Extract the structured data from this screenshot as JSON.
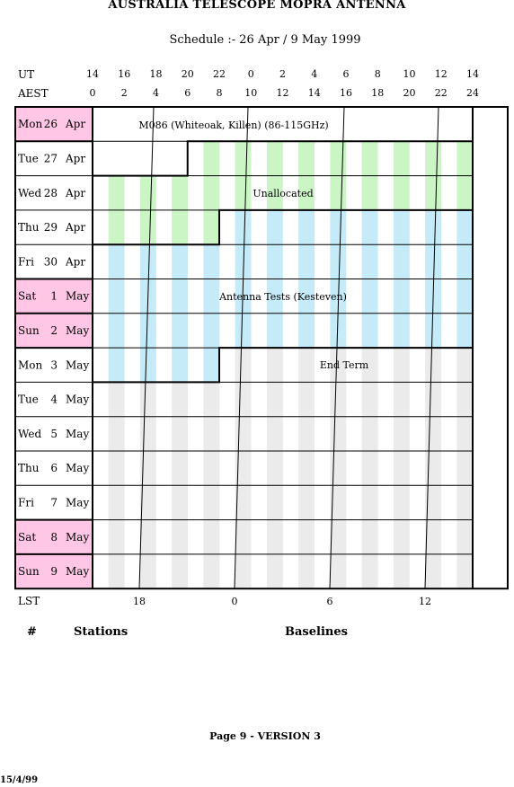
{
  "header": {
    "title": "AUSTRALIA TELESCOPE MOPRA ANTENNA",
    "subtitle": "Schedule :- 26 Apr / 9 May 1999"
  },
  "axes": {
    "ut_label": "UT",
    "aest_label": "AEST",
    "lst_label": "LST",
    "ut_ticks": [
      "14",
      "16",
      "18",
      "20",
      "22",
      "0",
      "2",
      "4",
      "6",
      "8",
      "10",
      "12",
      "14"
    ],
    "aest_ticks": [
      "0",
      "2",
      "4",
      "6",
      "8",
      "10",
      "12",
      "14",
      "16",
      "18",
      "20",
      "22",
      "24"
    ],
    "lst_ticks": [
      "18",
      "0",
      "6",
      "12"
    ]
  },
  "days": [
    {
      "name": "Mon",
      "date": "26",
      "month": "Apr",
      "highlight": true
    },
    {
      "name": "Tue",
      "date": "27",
      "month": "Apr",
      "highlight": false
    },
    {
      "name": "Wed",
      "date": "28",
      "month": "Apr",
      "highlight": false
    },
    {
      "name": "Thu",
      "date": "29",
      "month": "Apr",
      "highlight": false
    },
    {
      "name": "Fri",
      "date": "30",
      "month": "Apr",
      "highlight": false
    },
    {
      "name": "Sat",
      "date": "1",
      "month": "May",
      "highlight": true
    },
    {
      "name": "Sun",
      "date": "2",
      "month": "May",
      "highlight": true
    },
    {
      "name": "Mon",
      "date": "3",
      "month": "May",
      "highlight": false
    },
    {
      "name": "Tue",
      "date": "4",
      "month": "May",
      "highlight": false
    },
    {
      "name": "Wed",
      "date": "5",
      "month": "May",
      "highlight": false
    },
    {
      "name": "Thu",
      "date": "6",
      "month": "May",
      "highlight": false
    },
    {
      "name": "Fri",
      "date": "7",
      "month": "May",
      "highlight": false
    },
    {
      "name": "Sat",
      "date": "8",
      "month": "May",
      "highlight": true
    },
    {
      "name": "Sun",
      "date": "9",
      "month": "May",
      "highlight": true
    }
  ],
  "blocks": [
    {
      "label": "M086 (Whiteoak, Killen) (86-115GHz)",
      "start": {
        "day": 0,
        "hour": 0
      },
      "end": {
        "day": 1,
        "hour": 6
      },
      "stripe_color": "#ffffff"
    },
    {
      "label": "Unallocated",
      "start": {
        "day": 1,
        "hour": 6
      },
      "end": {
        "day": 3,
        "hour": 8
      },
      "stripe_color": "#ccf5c6"
    },
    {
      "label": "Antenna Tests (Kesteven)",
      "start": {
        "day": 3,
        "hour": 8
      },
      "end": {
        "day": 7,
        "hour": 8
      },
      "stripe_color": "#c6ebf8"
    },
    {
      "label": "End Term",
      "start": {
        "day": 7,
        "hour": 8
      },
      "end": {
        "day": 14,
        "hour": 0
      },
      "stripe_color": "#ebebeb"
    }
  ],
  "colors": {
    "weekend": "#ffc6e6",
    "grey_stripe": "#ebebeb"
  },
  "footer": {
    "col_number": "#",
    "col_stations": "Stations",
    "col_baselines": "Baselines",
    "page": "Page 9 - VERSION 3",
    "date": "15/4/99"
  }
}
